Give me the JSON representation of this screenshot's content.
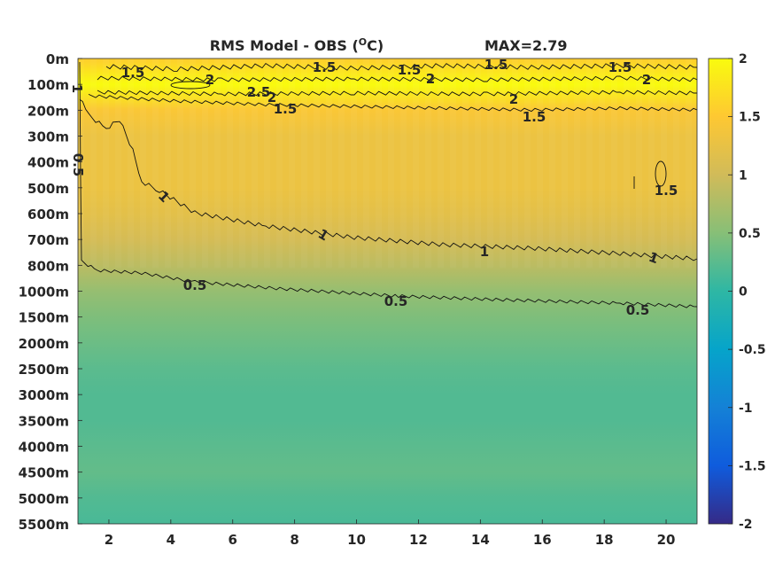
{
  "chart_data": {
    "type": "heatmap",
    "title": "RMS Model - OBS (",
    "title_unit_sup": "O",
    "title_unit_suffix": "C)",
    "max_label": "MAX=2.79",
    "xlabel": "",
    "ylabel": "",
    "xlim": [
      1,
      21
    ],
    "x_ticks": [
      2,
      4,
      6,
      8,
      10,
      12,
      14,
      16,
      18,
      20
    ],
    "y_ticks": [
      "0m",
      "100m",
      "200m",
      "300m",
      "400m",
      "500m",
      "600m",
      "700m",
      "800m",
      "1000m",
      "1500m",
      "2000m",
      "2500m",
      "3000m",
      "3500m",
      "4000m",
      "4500m",
      "5000m",
      "5500m"
    ],
    "colorbar": {
      "colormap": "parula",
      "clim": [
        -2,
        2
      ],
      "ticks": [
        "2",
        "1.5",
        "1",
        "0.5",
        "0",
        "-0.5",
        "-1",
        "-1.5",
        "-2"
      ],
      "stops": [
        "#352a87",
        "#0f5cdd",
        "#1481d6",
        "#06a4ca",
        "#2eb7a4",
        "#87bf77",
        "#d1bb59",
        "#fec832",
        "#f9fb0e"
      ]
    },
    "field_profile": {
      "depth": [
        "0m",
        "100m",
        "200m",
        "300m",
        "400m",
        "500m",
        "600m",
        "700m",
        "800m",
        "1000m",
        "1500m",
        "2000m",
        "2500m",
        "3000m",
        "3500m",
        "4000m",
        "4500m",
        "5000m",
        "5500m"
      ],
      "values": [
        1.55,
        2.2,
        1.45,
        1.3,
        1.3,
        1.3,
        1.2,
        1.05,
        0.85,
        0.6,
        0.45,
        0.35,
        0.25,
        0.2,
        0.2,
        0.25,
        0.3,
        0.2,
        0.15
      ]
    },
    "contours": [
      {
        "level": 0.5,
        "labels": [
          "0.5",
          "0.5",
          "0.5",
          "0.5"
        ]
      },
      {
        "level": 1,
        "labels": [
          "1",
          "1",
          "1",
          "1",
          "1"
        ]
      },
      {
        "level": 1.5,
        "labels": [
          "1.5",
          "1.5",
          "1.5",
          "1.5",
          "1.5",
          "1.5",
          "1.5",
          "1.5"
        ]
      },
      {
        "level": 2,
        "labels": [
          "2",
          "2",
          "2",
          "2",
          "2"
        ]
      },
      {
        "level": 2.5,
        "labels": [
          "2.5"
        ]
      }
    ]
  }
}
